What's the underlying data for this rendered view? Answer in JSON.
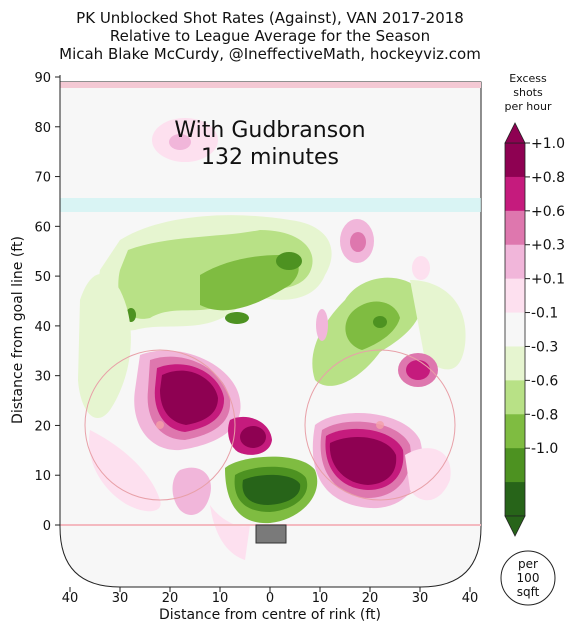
{
  "title_lines": [
    "PK Unblocked Shot Rates (Against), VAN 2017-2018",
    "Relative to League Average for the Season",
    "Micah Blake McCurdy, @IneffectiveMath, hockeyviz.com"
  ],
  "colorbar": {
    "title": [
      "Excess",
      "shots",
      "per hour"
    ],
    "labels": [
      "+1.0",
      "+0.8",
      "+0.6",
      "+0.3",
      "+0.1",
      "-0.1",
      "-0.3",
      "-0.6",
      "-0.8",
      "-1.0"
    ],
    "band_colors": [
      "#8e0152",
      "#c51b7d",
      "#de77ae",
      "#f1b6da",
      "#fde0ef",
      "#f7f7f7",
      "#e6f5d0",
      "#b8e186",
      "#7fbc41",
      "#4d9221",
      "#276419"
    ],
    "unit_lines": [
      "per",
      "100",
      "sqft"
    ]
  },
  "chart_data": {
    "type": "heatmap",
    "title": "PK Unblocked Shot Rates (Against), VAN 2017-2018",
    "subtitle": "Relative to League Average for the Season",
    "xlabel": "Distance from centre of rink (ft)",
    "ylabel": "Distance from goal line (ft)",
    "xlim": [
      42.5,
      -42.5
    ],
    "ylim": [
      -11,
      90
    ],
    "x_ticks": [
      40,
      30,
      20,
      10,
      0,
      10,
      20,
      30,
      40
    ],
    "x_tick_values": [
      -40,
      -30,
      -20,
      -10,
      0,
      10,
      20,
      30,
      40
    ],
    "y_ticks": [
      0,
      10,
      20,
      30,
      40,
      50,
      60,
      70,
      80,
      90
    ],
    "annotation": [
      "With Gudbranson",
      "132 minutes"
    ],
    "grid": false,
    "regions": [
      {
        "x": 16,
        "y": 27,
        "value": 1.0
      },
      {
        "x": -19,
        "y": 13,
        "value": 1.0
      },
      {
        "x": 3,
        "y": 17,
        "value": 0.9
      },
      {
        "x": -30,
        "y": 31,
        "value": 0.8
      },
      {
        "x": -18,
        "y": 56,
        "value": 0.6
      },
      {
        "x": 18,
        "y": 77,
        "value": 0.3
      },
      {
        "x": -3,
        "y": 8,
        "value": -1.0
      },
      {
        "x": -4,
        "y": 53,
        "value": -0.8
      },
      {
        "x": 7,
        "y": 41,
        "value": -0.8
      },
      {
        "x": 28,
        "y": 42,
        "value": -0.6
      },
      {
        "x": -22,
        "y": 40,
        "value": -0.8
      },
      {
        "x": 18,
        "y": 55,
        "value": -0.3
      }
    ]
  }
}
